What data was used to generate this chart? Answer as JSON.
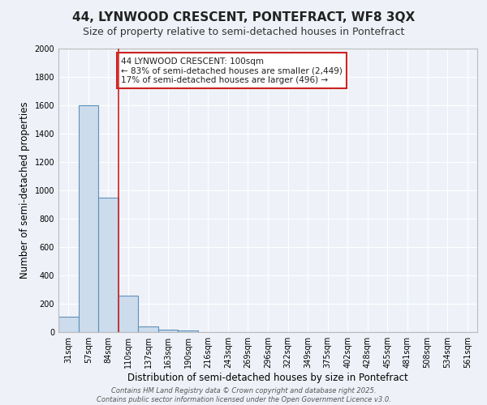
{
  "title_line1": "44, LYNWOOD CRESCENT, PONTEFRACT, WF8 3QX",
  "title_line2": "Size of property relative to semi-detached houses in Pontefract",
  "xlabel": "Distribution of semi-detached houses by size in Pontefract",
  "ylabel": "Number of semi-detached properties",
  "bar_labels": [
    "31sqm",
    "57sqm",
    "84sqm",
    "110sqm",
    "137sqm",
    "163sqm",
    "190sqm",
    "216sqm",
    "243sqm",
    "269sqm",
    "296sqm",
    "322sqm",
    "349sqm",
    "375sqm",
    "402sqm",
    "428sqm",
    "455sqm",
    "481sqm",
    "508sqm",
    "534sqm",
    "561sqm"
  ],
  "bar_values": [
    110,
    1600,
    950,
    260,
    40,
    20,
    10,
    0,
    0,
    0,
    0,
    0,
    0,
    0,
    0,
    0,
    0,
    0,
    0,
    0,
    0
  ],
  "bar_color": "#ccdcec",
  "bar_edge_color": "#6090b8",
  "highlight_line_color": "#cc2222",
  "annotation_text": "44 LYNWOOD CRESCENT: 100sqm\n← 83% of semi-detached houses are smaller (2,449)\n17% of semi-detached houses are larger (496) →",
  "annotation_box_color": "white",
  "annotation_box_edge": "#cc2222",
  "ylim": [
    0,
    2000
  ],
  "yticks": [
    0,
    200,
    400,
    600,
    800,
    1000,
    1200,
    1400,
    1600,
    1800,
    2000
  ],
  "background_color": "#eef2f8",
  "grid_color": "#d8e0f0",
  "footer": "Contains HM Land Registry data © Crown copyright and database right 2025.\nContains public sector information licensed under the Open Government Licence v3.0.",
  "title_fontsize": 11,
  "subtitle_fontsize": 9,
  "axis_label_fontsize": 8.5,
  "tick_fontsize": 7,
  "annotation_fontsize": 7.5,
  "footer_fontsize": 6
}
